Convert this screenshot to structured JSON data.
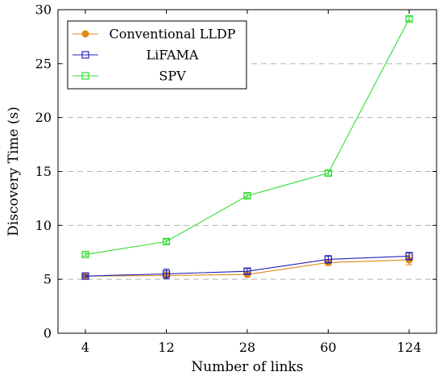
{
  "chart_data": {
    "type": "line",
    "categories": [
      "4",
      "12",
      "28",
      "60",
      "124"
    ],
    "xlabel": "Number of links",
    "ylabel": "Discovery Time (s)",
    "ylim": [
      0,
      30
    ],
    "yticks": [
      0,
      5,
      10,
      15,
      20,
      25,
      30
    ],
    "grid": "horizontal dashed",
    "legend_position": "top-left",
    "series": [
      {
        "name": "Conventional LLDP",
        "marker": "circle",
        "color": "#e08a16",
        "values": [
          5.3,
          5.35,
          5.45,
          6.55,
          6.8
        ],
        "error": [
          0.1,
          0.3,
          0.2,
          0.25,
          0.45
        ]
      },
      {
        "name": "LiFAMA",
        "marker": "square",
        "color": "#2323b8",
        "values": [
          5.3,
          5.5,
          5.75,
          6.85,
          7.15
        ],
        "error": [
          0.1,
          0.45,
          0.25,
          0.35,
          0.35
        ]
      },
      {
        "name": "SPV",
        "marker": "square",
        "color": "#33dd33",
        "values": [
          7.3,
          8.5,
          12.75,
          14.85,
          29.15
        ],
        "error": [
          0.15,
          0.2,
          0.2,
          0.2,
          0.2
        ]
      }
    ]
  }
}
